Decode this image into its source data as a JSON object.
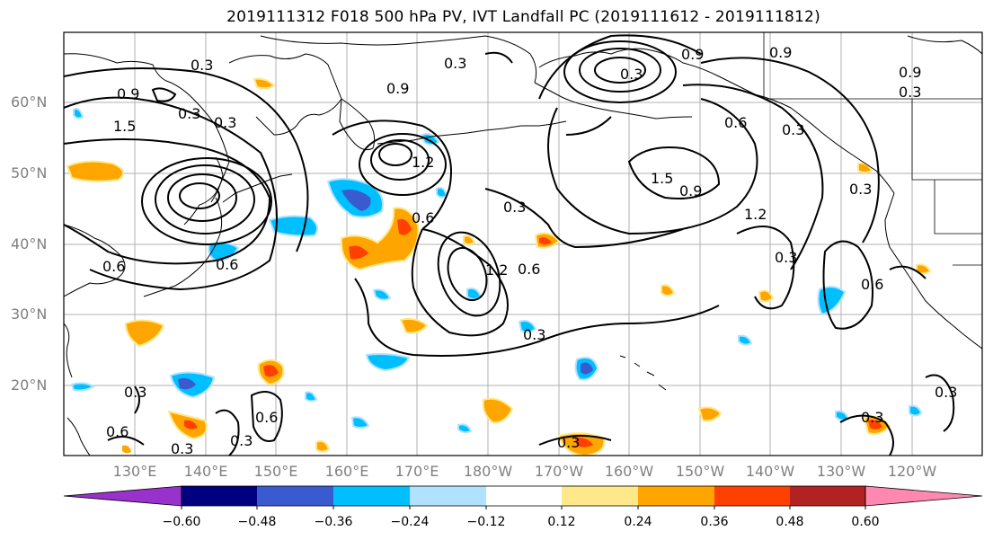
{
  "title": "2019111312 F018 500 hPa PV, IVT Landfall PC (2019111612 - 2019111812)",
  "lat_labels": [
    "60°N",
    "50°N",
    "40°N",
    "30°N",
    "20°N"
  ],
  "lon_labels": [
    "130°E",
    "140°E",
    "150°E",
    "160°E",
    "170°E",
    "180°W",
    "170°W",
    "160°W",
    "150°W",
    "140°W",
    "130°W",
    "120°W"
  ],
  "colorbar": {
    "ticks": [
      "−0.60",
      "−0.48",
      "−0.36",
      "−0.24",
      "−0.12",
      "0.12",
      "0.24",
      "0.36",
      "0.48",
      "0.60"
    ],
    "colors": [
      "#9932CC",
      "#000080",
      "#3A5BD0",
      "#00BFFF",
      "#B0E2FF",
      "#FFFFFF",
      "#FFE88A",
      "#FFA500",
      "#FF4000",
      "#B22222",
      "#FF88B0"
    ]
  },
  "contour_labels": [
    "0.3",
    "0.9",
    "0.3",
    "0.3",
    "0.6",
    "1.5",
    "0.9",
    "0.3",
    "0.6",
    "1.2",
    "0.6",
    "0.3",
    "0.3",
    "0.9",
    "0.3",
    "0.6",
    "1.5",
    "0.9",
    "1.2",
    "0.3",
    "0.6",
    "1.2",
    "0.6",
    "0.3",
    "0.9",
    "0.9",
    "0.3",
    "0.3",
    "0.6",
    "0.3",
    "0.3",
    "0.3",
    "0.3",
    "0.6",
    "0.3",
    "0.3"
  ]
}
